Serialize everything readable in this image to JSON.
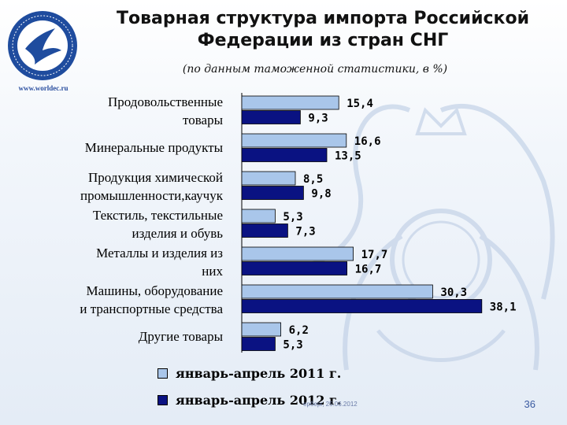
{
  "header": {
    "title_line1": "Товарная  структура импорта Российской",
    "title_line2": "Федерации из стран СНГ",
    "subtitle": "(по данным таможенной статистики,  в %)"
  },
  "logo": {
    "url_text": "www.worldec.ru",
    "icon": "dove-logo-icon"
  },
  "background": {
    "icon": "double-headed-eagle-emblem-icon"
  },
  "colors": {
    "series1": "#a9c6ea",
    "series2": "#0a1282",
    "title": "#111111"
  },
  "chart_data": {
    "type": "bar",
    "orientation": "horizontal",
    "title": "Товарная  структура импорта Российской Федерации из стран СНГ",
    "subtitle": "(по данным таможенной статистики,  в %)",
    "categories": [
      [
        "Продовольственные",
        "товары"
      ],
      [
        "Минеральные продукты"
      ],
      [
        "Продукция химической",
        "промышленности,каучук"
      ],
      [
        "Текстиль, текстильные",
        "изделия и обувь"
      ],
      [
        "Металлы и изделия из",
        "них"
      ],
      [
        "Машины, оборудование",
        "и транспортные средства"
      ],
      [
        "Другие товары"
      ]
    ],
    "series": [
      {
        "name": "январь-апрель  2011 г.",
        "values": [
          15.4,
          16.6,
          8.5,
          5.3,
          17.7,
          30.3,
          6.2
        ],
        "labels": [
          "15,4",
          "16,6",
          "8,5",
          "5,3",
          "17,7",
          "30,3",
          "6,2"
        ]
      },
      {
        "name": "январь-апрель  2012 г.",
        "values": [
          9.3,
          13.5,
          9.8,
          7.3,
          16.7,
          38.1,
          5.3
        ],
        "labels": [
          "9,3",
          "13,5",
          "9,8",
          "7,3",
          "16,7",
          "38,1",
          "5,3"
        ]
      }
    ],
    "xlim": [
      0,
      38.1
    ],
    "grid": false,
    "legend_position": "bottom"
  },
  "footer": {
    "note": "ерберг, 25.06.2012",
    "page_number": "36"
  }
}
